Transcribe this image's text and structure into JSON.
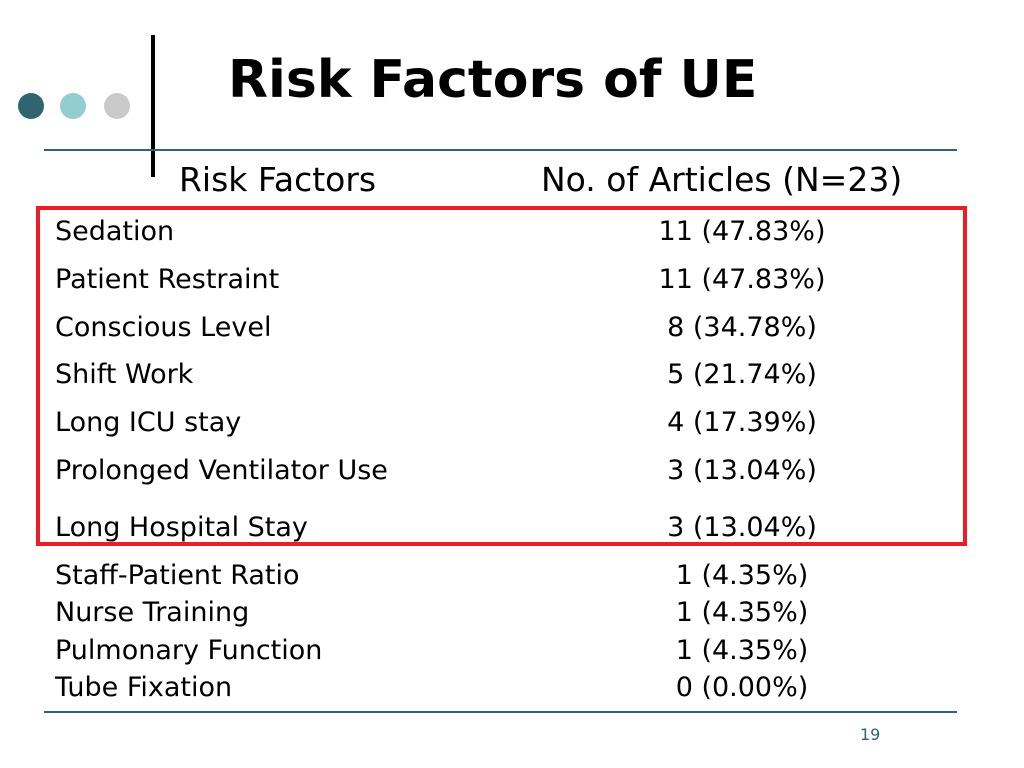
{
  "title": "Risk Factors of UE",
  "colors": {
    "accent": "#2f6470",
    "bullet_dark": "#2f6470",
    "bullet_teal": "#93cdd1",
    "bullet_grey": "#c9c9c9",
    "highlight_box": "#ee1c24",
    "divider": "#2f6470"
  },
  "table": {
    "headers": {
      "factor": "Risk Factors",
      "articles": "No. of Articles (N=23)"
    },
    "rows": [
      {
        "factor": "Sedation",
        "articles": "11 (47.83%)"
      },
      {
        "factor": "Patient Restraint",
        "articles": "11 (47.83%)"
      },
      {
        "factor": "Conscious Level",
        "articles": "8 (34.78%)"
      },
      {
        "factor": "Shift Work",
        "articles": "5 (21.74%)"
      },
      {
        "factor": "Long ICU stay",
        "articles": "4 (17.39%)"
      },
      {
        "factor": "Prolonged Ventilator Use",
        "articles": "3 (13.04%)"
      },
      {
        "factor": "Long Hospital Stay",
        "articles": "3 (13.04%)"
      },
      {
        "factor": "Staff-Patient Ratio",
        "articles": "1 (4.35%)"
      },
      {
        "factor": "Nurse Training",
        "articles": "1 (4.35%)"
      },
      {
        "factor": "Pulmonary Function",
        "articles": "1 (4.35%)"
      },
      {
        "factor": "Tube Fixation",
        "articles": "0 (0.00%)"
      }
    ]
  },
  "page_number": "19"
}
